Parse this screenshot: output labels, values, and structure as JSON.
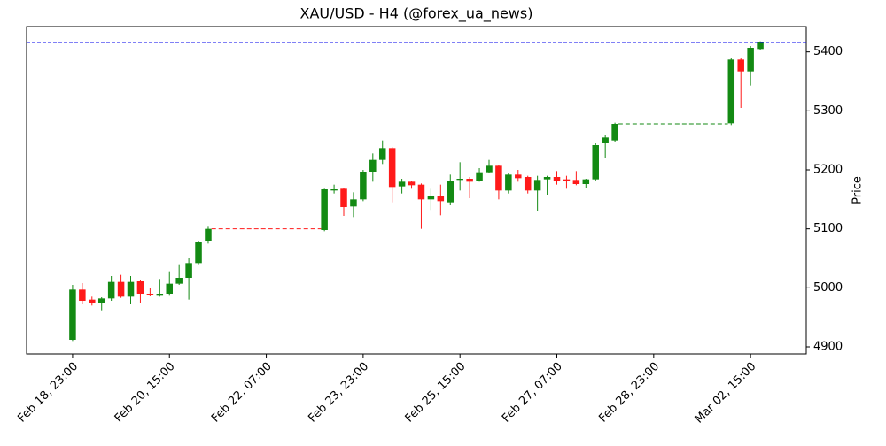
{
  "chart_data": {
    "type": "candlestick",
    "title": "XAU/USD - H4 (@forex_ua_news)",
    "ylabel": "Price",
    "x": [
      "Feb 18, 23:00",
      "Feb 19, 03:00",
      "Feb 19, 07:00",
      "Feb 19, 11:00",
      "Feb 19, 15:00",
      "Feb 19, 19:00",
      "Feb 19, 23:00",
      "Feb 20, 03:00",
      "Feb 20, 07:00",
      "Feb 20, 11:00",
      "Feb 20, 15:00",
      "Feb 20, 19:00",
      "Feb 20, 23:00",
      "Feb 21, 03:00",
      "Feb 21, 07:00",
      "Feb 23, 07:00",
      "Feb 23, 11:00",
      "Feb 23, 15:00",
      "Feb 23, 19:00",
      "Feb 23, 23:00",
      "Feb 24, 03:00",
      "Feb 24, 07:00",
      "Feb 24, 11:00",
      "Feb 24, 15:00",
      "Feb 24, 19:00",
      "Feb 24, 23:00",
      "Feb 25, 03:00",
      "Feb 25, 07:00",
      "Feb 25, 11:00",
      "Feb 25, 15:00",
      "Feb 25, 19:00",
      "Feb 25, 23:00",
      "Feb 26, 03:00",
      "Feb 26, 07:00",
      "Feb 26, 11:00",
      "Feb 26, 15:00",
      "Feb 26, 19:00",
      "Feb 26, 23:00",
      "Feb 27, 03:00",
      "Feb 27, 07:00",
      "Feb 27, 11:00",
      "Feb 27, 15:00",
      "Feb 27, 19:00",
      "Feb 27, 23:00",
      "Feb 28, 03:00",
      "Feb 28, 07:00",
      "Mar 02, 07:00",
      "Mar 02, 11:00",
      "Mar 02, 15:00",
      "Mar 02, 19:00"
    ],
    "open": [
      4912,
      4997,
      4980,
      4975,
      4982,
      5010,
      4985,
      5012,
      4990,
      4988,
      4990,
      5007,
      5017,
      5042,
      5080,
      5098,
      5165,
      5168,
      5138,
      5150,
      5197,
      5217,
      5237,
      5172,
      5180,
      5175,
      5150,
      5155,
      5145,
      5183,
      5185,
      5182,
      5196,
      5207,
      5165,
      5192,
      5188,
      5165,
      5184,
      5188,
      5184,
      5183,
      5176,
      5184,
      5245,
      5250,
      5279,
      5387,
      5367,
      5405
    ],
    "high": [
      5005,
      5008,
      4985,
      4984,
      5020,
      5022,
      5020,
      5014,
      5000,
      5015,
      5028,
      5040,
      5050,
      5080,
      5105,
      5168,
      5175,
      5170,
      5162,
      5200,
      5228,
      5250,
      5239,
      5185,
      5182,
      5177,
      5168,
      5175,
      5192,
      5213,
      5188,
      5203,
      5217,
      5209,
      5194,
      5200,
      5190,
      5190,
      5190,
      5198,
      5190,
      5198,
      5185,
      5245,
      5260,
      5280,
      5390,
      5389,
      5410,
      5418
    ],
    "low": [
      4910,
      4972,
      4970,
      4962,
      4978,
      4983,
      4972,
      4975,
      4986,
      4985,
      4988,
      5005,
      4980,
      5040,
      5075,
      5096,
      5160,
      5122,
      5120,
      5147,
      5180,
      5210,
      5145,
      5160,
      5168,
      5100,
      5132,
      5123,
      5140,
      5165,
      5152,
      5180,
      5194,
      5150,
      5160,
      5180,
      5160,
      5130,
      5158,
      5175,
      5168,
      5174,
      5170,
      5182,
      5220,
      5248,
      5276,
      5305,
      5343,
      5403
    ],
    "close": [
      4997,
      4978,
      4975,
      4982,
      5010,
      4985,
      5010,
      4990,
      4989,
      4990,
      5007,
      5017,
      5042,
      5078,
      5100,
      5167,
      5167,
      5137,
      5150,
      5197,
      5217,
      5237,
      5171,
      5180,
      5174,
      5150,
      5155,
      5147,
      5182,
      5185,
      5180,
      5196,
      5207,
      5165,
      5192,
      5186,
      5165,
      5183,
      5188,
      5182,
      5182,
      5176,
      5184,
      5242,
      5255,
      5278,
      5387,
      5367,
      5407,
      5416
    ],
    "up_color": "#138a13",
    "down_color": "#ff1a1a",
    "last_price_color": "#0000ee",
    "xlim": [
      "Feb 18, 04:00",
      "Mar 03, 14:00"
    ],
    "xticks": [
      "Feb 18, 23:00",
      "Feb 20, 15:00",
      "Feb 22, 07:00",
      "Feb 23, 23:00",
      "Feb 25, 15:00",
      "Feb 27, 07:00",
      "Feb 28, 23:00",
      "Mar 02, 15:00"
    ],
    "ylim": [
      4888,
      5443
    ],
    "yticks": [
      4900,
      5000,
      5100,
      5200,
      5300,
      5400
    ]
  }
}
